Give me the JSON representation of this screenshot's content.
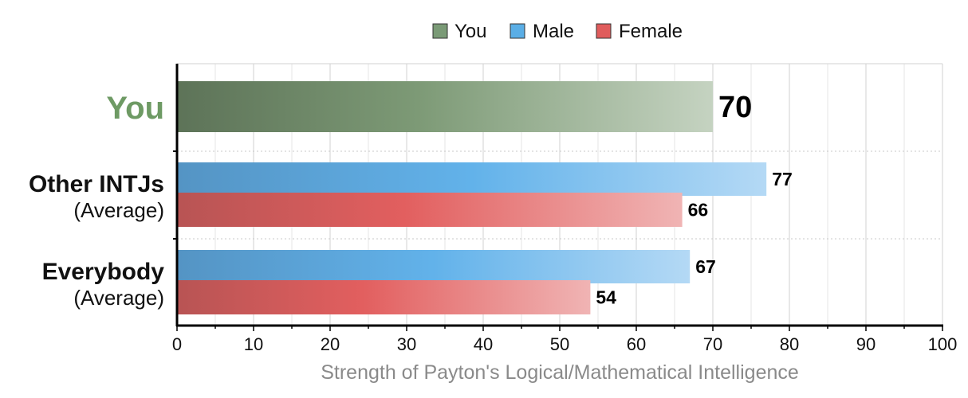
{
  "chart_data": {
    "type": "bar",
    "orientation": "horizontal",
    "xlabel": "Strength of Payton's Logical/Mathematical Intelligence",
    "xlim": [
      0,
      100
    ],
    "xticks": [
      0,
      10,
      20,
      30,
      40,
      50,
      60,
      70,
      80,
      90,
      100
    ],
    "grid": true,
    "legend_position": "top",
    "legend": [
      {
        "name": "You",
        "color": "#7a9a76"
      },
      {
        "name": "Male",
        "color": "#5aaee6"
      },
      {
        "name": "Female",
        "color": "#e05c5c"
      }
    ],
    "categories": [
      {
        "label": "You",
        "sublabel": ""
      },
      {
        "label": "Other INTJs",
        "sublabel": "(Average)"
      },
      {
        "label": "Everybody",
        "sublabel": "(Average)"
      }
    ],
    "bars": [
      {
        "category": "You",
        "series": "You",
        "value": 70
      },
      {
        "category": "Other INTJs",
        "series": "Male",
        "value": 77
      },
      {
        "category": "Other INTJs",
        "series": "Female",
        "value": 66
      },
      {
        "category": "Everybody",
        "series": "Male",
        "value": 67
      },
      {
        "category": "Everybody",
        "series": "Female",
        "value": 54
      }
    ]
  }
}
